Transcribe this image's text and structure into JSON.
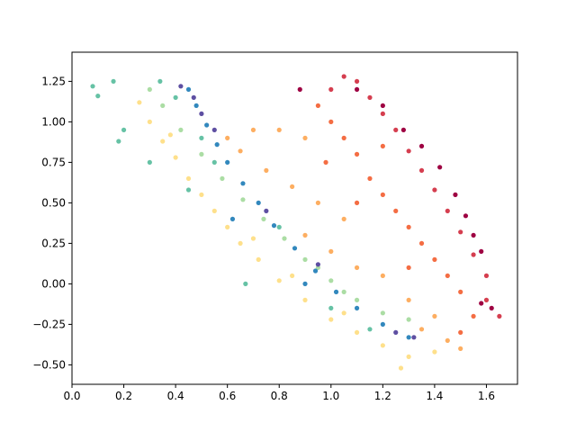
{
  "chart_data": {
    "type": "scatter",
    "xlim": [
      0,
      1.72
    ],
    "ylim": [
      -0.62,
      1.43
    ],
    "xticks": [
      {
        "value": 0,
        "label": "0.0"
      },
      0.2,
      0.4,
      0.6,
      0.8,
      {
        "value": 1,
        "label": "1.0"
      },
      1.2,
      1.4,
      1.6
    ],
    "yticks": [
      {
        "value": -0.5,
        "label": "−0.50"
      },
      {
        "value": -0.25,
        "label": "−0.25"
      },
      {
        "value": 0,
        "label": "0.00"
      },
      0.25,
      {
        "value": 0.5,
        "label": "0.50"
      },
      0.75,
      {
        "value": 1,
        "label": "1.00"
      },
      1.25
    ],
    "series": [
      {
        "color": "#fee08b",
        "x": [
          0.26,
          0.3,
          0.35,
          0.4,
          0.45,
          0.5,
          0.55,
          0.6,
          0.65,
          0.72,
          0.8,
          0.9,
          1.0,
          1.1,
          1.2,
          1.3,
          1.4,
          0.7,
          0.85,
          1.05,
          0.38,
          1.27
        ],
        "values": [
          1.12,
          1.0,
          0.88,
          0.78,
          0.65,
          0.55,
          0.45,
          0.35,
          0.25,
          0.15,
          0.02,
          -0.1,
          -0.22,
          -0.3,
          -0.38,
          -0.45,
          -0.42,
          0.28,
          0.05,
          -0.18,
          0.92,
          -0.52
        ]
      },
      {
        "color": "#abdda4",
        "x": [
          0.3,
          0.35,
          0.42,
          0.5,
          0.58,
          0.66,
          0.74,
          0.82,
          0.9,
          1.0,
          1.1,
          1.2,
          1.3,
          0.95,
          1.05
        ],
        "values": [
          1.2,
          1.1,
          0.95,
          0.8,
          0.65,
          0.52,
          0.4,
          0.28,
          0.15,
          0.02,
          -0.1,
          -0.18,
          -0.22,
          0.1,
          -0.05
        ]
      },
      {
        "color": "#66c2a5",
        "x": [
          0.08,
          0.16,
          0.18,
          0.2,
          0.3,
          0.34,
          0.4,
          0.45,
          0.55,
          0.67,
          0.8,
          1.0,
          1.15,
          0.5,
          0.1
        ],
        "values": [
          1.22,
          1.25,
          0.88,
          0.95,
          0.75,
          1.25,
          1.15,
          0.58,
          0.75,
          0.0,
          0.35,
          -0.15,
          -0.28,
          0.9,
          1.16
        ]
      },
      {
        "color": "#3288bd",
        "x": [
          0.45,
          0.48,
          0.52,
          0.56,
          0.6,
          0.66,
          0.72,
          0.78,
          0.86,
          0.94,
          1.02,
          1.1,
          1.2,
          1.3,
          0.62,
          0.9
        ],
        "values": [
          1.2,
          1.1,
          0.98,
          0.86,
          0.75,
          0.62,
          0.5,
          0.36,
          0.22,
          0.08,
          -0.05,
          -0.15,
          -0.25,
          -0.33,
          0.4,
          0.0
        ]
      },
      {
        "color": "#5e4fa2",
        "x": [
          0.42,
          0.47,
          0.5,
          0.55,
          0.75,
          0.95,
          1.25,
          1.32
        ],
        "values": [
          1.22,
          1.15,
          1.05,
          0.95,
          0.45,
          0.12,
          -0.3,
          -0.33
        ]
      },
      {
        "color": "#fdae61",
        "x": [
          0.6,
          0.7,
          0.8,
          0.9,
          0.75,
          0.85,
          0.95,
          1.05,
          0.9,
          1.0,
          1.1,
          1.2,
          1.3,
          1.4,
          1.45,
          1.5,
          1.35,
          0.65
        ],
        "values": [
          0.9,
          0.95,
          0.95,
          0.9,
          0.7,
          0.6,
          0.5,
          0.4,
          0.3,
          0.2,
          0.1,
          0.05,
          -0.1,
          -0.2,
          -0.35,
          -0.4,
          -0.28,
          0.82
        ]
      },
      {
        "color": "#f46d43",
        "x": [
          0.95,
          1.0,
          1.05,
          1.1,
          1.15,
          1.2,
          1.25,
          1.3,
          1.35,
          1.4,
          1.45,
          1.5,
          1.55,
          1.2,
          1.1,
          1.3,
          0.98,
          1.5
        ],
        "values": [
          1.1,
          1.0,
          0.9,
          0.8,
          0.65,
          0.55,
          0.45,
          0.35,
          0.25,
          0.15,
          0.05,
          -0.05,
          -0.2,
          0.85,
          0.5,
          0.1,
          0.75,
          -0.3
        ]
      },
      {
        "color": "#d53e4f",
        "x": [
          1.0,
          1.05,
          1.1,
          1.15,
          1.2,
          1.25,
          1.3,
          1.35,
          1.4,
          1.45,
          1.5,
          1.55,
          1.6,
          1.6,
          1.65
        ],
        "values": [
          1.2,
          1.28,
          1.25,
          1.15,
          1.05,
          0.95,
          0.82,
          0.7,
          0.58,
          0.45,
          0.32,
          0.18,
          0.05,
          -0.1,
          -0.2
        ]
      },
      {
        "color": "#9e0142",
        "x": [
          0.88,
          1.1,
          1.2,
          1.28,
          1.35,
          1.42,
          1.48,
          1.52,
          1.55,
          1.58,
          1.62,
          1.58
        ],
        "values": [
          1.2,
          1.2,
          1.1,
          0.95,
          0.85,
          0.72,
          0.55,
          0.42,
          0.3,
          0.2,
          -0.15,
          -0.12
        ]
      }
    ]
  }
}
